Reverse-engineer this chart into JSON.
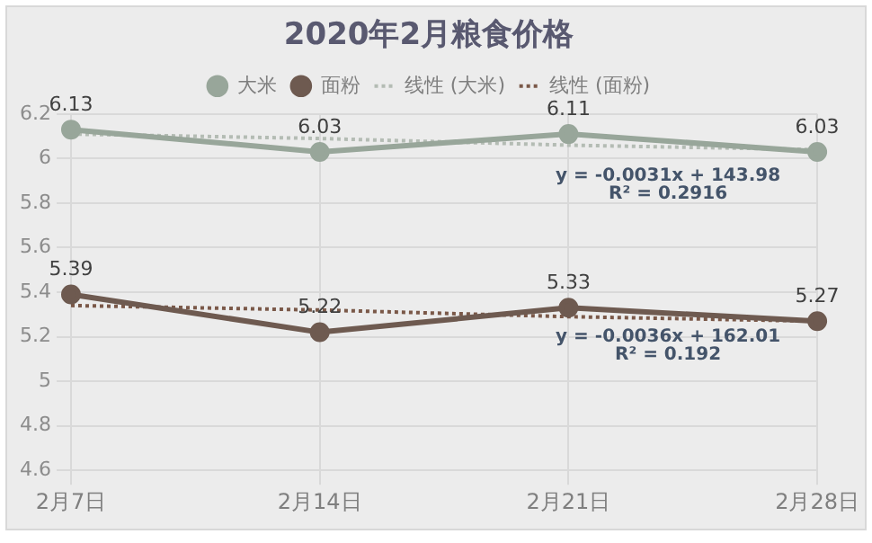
{
  "chart_data": {
    "type": "line",
    "title": "2020年2月粮食价格",
    "categories": [
      "2月7日",
      "2月14日",
      "2月21日",
      "2月28日"
    ],
    "series": [
      {
        "name": "大米",
        "color": "#98a69a",
        "values": [
          6.13,
          6.03,
          6.11,
          6.03
        ],
        "value_labels": [
          "6.13",
          "6.03",
          "6.11",
          "6.03"
        ],
        "marker": "circle",
        "line_style": "solid"
      },
      {
        "name": "面粉",
        "color": "#6e5a50",
        "values": [
          5.39,
          5.22,
          5.33,
          5.27
        ],
        "value_labels": [
          "5.39",
          "5.22",
          "5.33",
          "5.27"
        ],
        "marker": "circle",
        "line_style": "solid"
      },
      {
        "name": "线性 (大米)",
        "color": "#b4bcb4",
        "values": [
          6.11,
          6.09,
          6.06,
          6.04
        ],
        "marker": "none",
        "line_style": "dotted"
      },
      {
        "name": "线性 (面粉)",
        "color": "#7a5848",
        "values": [
          5.34,
          5.32,
          5.29,
          5.27
        ],
        "marker": "none",
        "line_style": "dotted"
      }
    ],
    "ylim": [
      4.6,
      6.2
    ],
    "yticks": [
      4.6,
      4.8,
      5,
      5.2,
      5.4,
      5.6,
      5.8,
      6,
      6.2
    ],
    "grid": true,
    "legend": "top",
    "annotations": [
      "y = -0.0031x + 143.98",
      "R² = 0.2916",
      "y = -0.0036x + 162.01",
      "R² = 0.192"
    ]
  }
}
